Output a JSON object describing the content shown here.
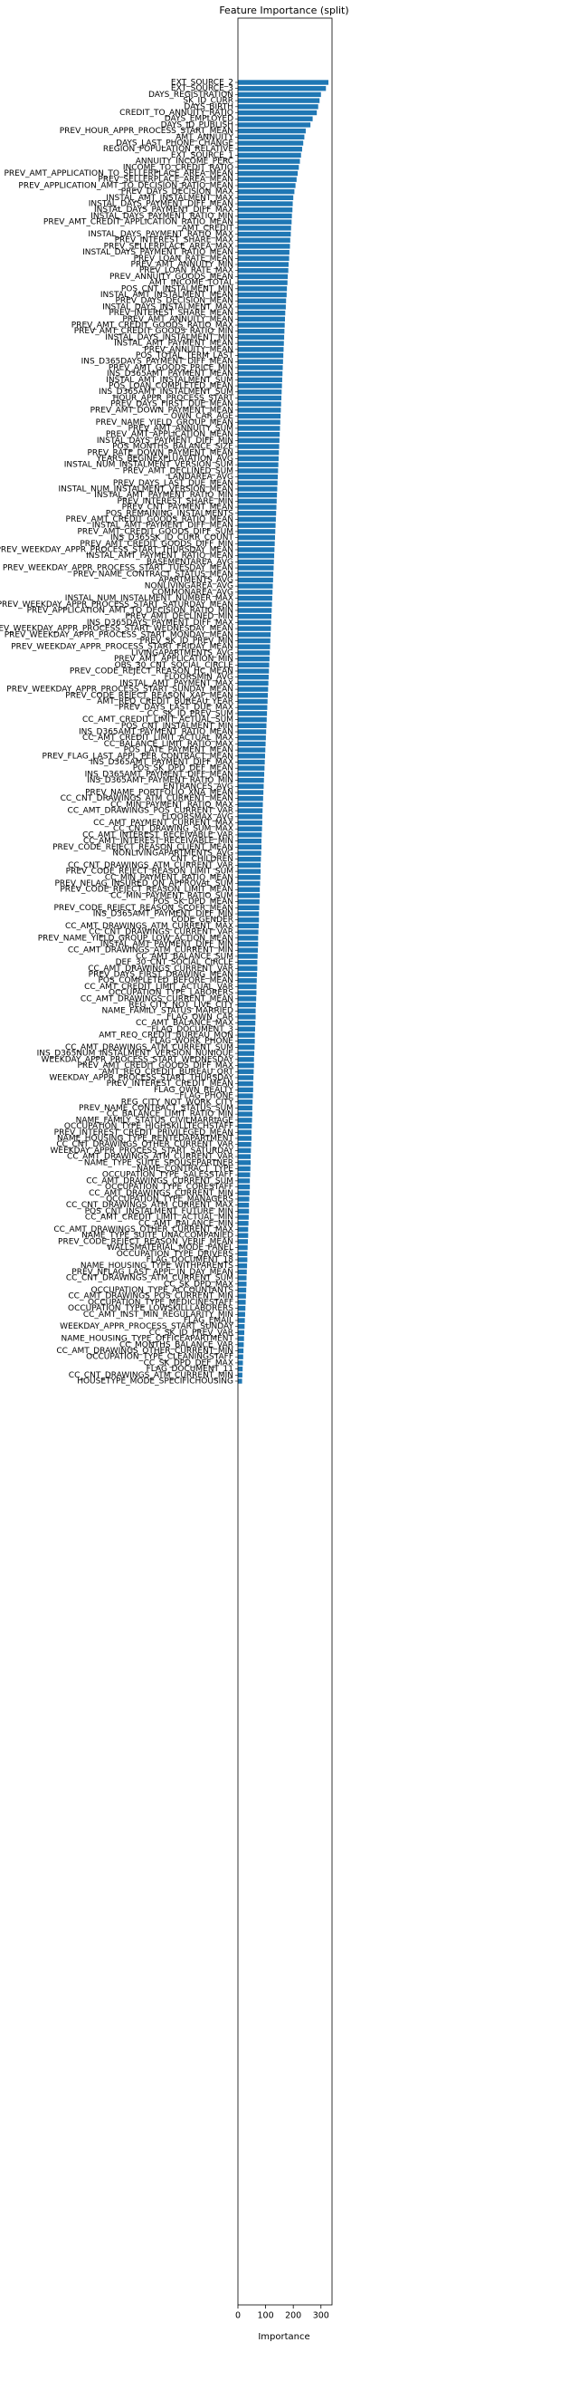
{
  "chart_data": {
    "type": "barh",
    "title": "Feature Importance (split)",
    "xlabel": "Importance",
    "color": "#1f77b4",
    "xlim": [
      0,
      340
    ],
    "xticks": [
      0,
      100,
      200,
      300
    ],
    "categories": [
      "EXT_SOURCE_2",
      "EXT_SOURCE_3",
      "DAYS_REGISTRATION",
      "SK_ID_CURR",
      "DAYS_BIRTH",
      "CREDIT_TO_ANNUITY_RATIO",
      "DAYS_EMPLOYED",
      "DAYS_ID_PUBLISH",
      "PREV_HOUR_APPR_PROCESS_START_MEAN",
      "AMT_ANNUITY",
      "DAYS_LAST_PHONE_CHANGE",
      "REGION_POPULATION_RELATIVE",
      "EXT_SOURCE_1",
      "ANNUITY_INCOME_PERC",
      "INCOME_TO_CREDIT_RATIO",
      "PREV_AMT_APPLICATION_TO_SELLERPLACE_AREA_MEAN",
      "PREV_SELLERPLACE_AREA_MEAN",
      "PREV_APPLICATION_AMT_TO_DECISION_RATIO_MEAN",
      "PREV_DAYS_DECISION_MAX",
      "INSTAL_AMT_INSTALMENT_MAX",
      "INSTAL_DAYS_PAYMENT_DIFF_MEAN",
      "INSTAL_DAYS_PAYMENT_DIFF_MAX",
      "INSTAL_DAYS_PAYMENT_RATIO_MIN",
      "PREV_AMT_CREDIT_APPLICATION_RATIO_MEAN",
      "AMT_CREDIT",
      "INSTAL_DAYS_PAYMENT_RATIO_MAX",
      "PREV_INTEREST_SHARE_MAX",
      "PREV_SELLERPLACE_AREA_MAX",
      "INSTAL_DAYS_PAYMENT_RATIO_MEAN",
      "PREV_LOAN_RATE_MEAN",
      "PREV_AMT_ANNUITY_MIN",
      "PREV_LOAN_RATE_MAX",
      "PREV_ANNUITY_GOODS_MEAN",
      "AMT_INCOME_TOTAL",
      "POS_CNT_INSTALMENT_MIN",
      "INSTAL_AMT_INSTALMENT_MEAN",
      "PREV_DAYS_DECISION_MEAN",
      "INSTAL_DAYS_INSTALMENT_MAX",
      "PREV_INTEREST_SHARE_MEAN",
      "PREV_AMT_ANNUITY_MEAN",
      "PREV_AMT_CREDIT_GOODS_RATIO_MAX",
      "PREV_AMT_CREDIT_GOODS_RATIO_MIN",
      "INSTAL_DAYS_INSTALMENT_MIN",
      "INSTAL_AMT_PAYMENT_MEAN",
      "PREV_ANNUITY_MEAN",
      "POS_TOTAL_TERM_LAST",
      "INS_D365DAYS_PAYMENT_DIFF_MEAN",
      "PREV_AMT_GOODS_PRICE_MIN",
      "INS_D365AMT_PAYMENT_MEAN",
      "INSTAL_AMT_INSTALMENT_SUM",
      "POS_LOAN_COMPLETED_MEAN",
      "INS_D365AMT_INSTALMENT_SUM",
      "HOUR_APPR_PROCESS_START",
      "PREV_DAYS_FIRST_DUE_MEAN",
      "PREV_AMT_DOWN_PAYMENT_MEAN",
      "OWN_CAR_AGE",
      "PREV_NAME_YIELD_GROUP_MEAN",
      "PREV_AMT_ANNUITY_SUM",
      "PREV_AMT_APPLICATION_MEAN",
      "INSTAL_DAYS_PAYMENT_DIFF_MIN",
      "POS_MONTHS_BALANCE_SIZE",
      "PREV_RATE_DOWN_PAYMENT_MEAN",
      "YEARS_BEGINEXPLUATATION_AVG",
      "INSTAL_NUM_INSTALMENT_VERSION_SUM",
      "PREV_AMT_DECLINED_SUM",
      "LANDAREA_AVG",
      "PREV_DAYS_LAST_DUE_MEAN",
      "INSTAL_NUM_INSTALMENT_VERSION_MEAN",
      "INSTAL_AMT_PAYMENT_RATIO_MIN",
      "PREV_INTEREST_SHARE_MIN",
      "PREV_CNT_PAYMENT_MEAN",
      "POS_REMAINING_INSTALMENTS",
      "PREV_AMT_CREDIT_GOODS_RATIO_MEAN",
      "INSTAL_AMT_PAYMENT_DIFF_MEAN",
      "PREV_AMT_CREDIT_GOODS_DIFF_SUM",
      "INS_D365SK_ID_CURR_COUNT",
      "PREV_AMT_CREDIT_GOODS_DIFF_MIN",
      "PREV_WEEKDAY_APPR_PROCESS_START_THURSDAY_MEAN",
      "INSTAL_AMT_PAYMENT_RATIO_MEAN",
      "BASEMENTAREA_AVG",
      "PREV_WEEKDAY_APPR_PROCESS_START_TUESDAY_MEAN",
      "PREV_NAME_CONTRACT_STATUS_MEAN",
      "APARTMENTS_AVG",
      "NONLIVINGAREA_AVG",
      "COMMONAREA_AVG",
      "INSTAL_NUM_INSTALMENT_NUMBER_MAX",
      "PREV_WEEKDAY_APPR_PROCESS_START_SATURDAY_MEAN",
      "PREV_APPLICATION_AMT_TO_DECISION_RATIO_MIN",
      "PREV_AMT_DECLINED_MIN",
      "INS_D365DAYS_PAYMENT_DIFF_MAX",
      "PREV_WEEKDAY_APPR_PROCESS_START_WEDNESDAY_MEAN",
      "PREV_WEEKDAY_APPR_PROCESS_START_MONDAY_MEAN",
      "PREV_SK_ID_PREV_MIN",
      "PREV_WEEKDAY_APPR_PROCESS_START_FRIDAY_MEAN",
      "LIVINGAPARTMENTS_AVG",
      "PREV_AMT_APPLICATION_MIN",
      "OBS_30_CNT_SOCIAL_CIRCLE",
      "PREV_CODE_REJECT_REASON_HC_MEAN",
      "FLOORSMIN_AVG",
      "INSTAL_AMT_PAYMENT_MAX",
      "PREV_WEEKDAY_APPR_PROCESS_START_SUNDAY_MEAN",
      "PREV_CODE_REJECT_REASON_XAP_MEAN",
      "AMT_REQ_CREDIT_BUREAU_YEAR",
      "PREV_DAYS_LAST_DUE_MAX",
      "CC_SK_ID_PREV_SUM",
      "CC_AMT_CREDIT_LIMIT_ACTUAL_SUM",
      "POS_CNT_INSTALMENT_MIN",
      "INS_D365AMT_PAYMENT_RATIO_MEAN",
      "CC_AMT_CREDIT_LIMIT_ACTUAL_MAX",
      "CC_BALANCE_LIMIT_RATIO_MAX",
      "POS_LATE_PAYMENT_MEAN",
      "PREV_FLAG_LAST_APPL_PER_CONTRACT_MEAN",
      "INS_D365AMT_PAYMENT_DIFF_MAX",
      "POS_SK_DPD_DEF_MEAN",
      "INS_D365AMT_PAYMENT_DIFF_MEAN",
      "INS_D365AMT_PAYMENT_RATIO_MIN",
      "ENTRANCES_AVG",
      "PREV_NAME_PORTFOLIO_XNA_MEAN",
      "CC_CNT_DRAWINGS_ATM_CURRENT_MEAN",
      "CC_MIN_PAYMENT_RATIO_MAX",
      "CC_AMT_DRAWINGS_POS_CURRENT_VAR",
      "FLOORSMAX_AVG",
      "CC_AMT_PAYMENT_CURRENT_MAX",
      "CC_CNT_DRAWING_SUM_MAX",
      "CC_AMT_INTEREST_RECEIVABLE_VAR",
      "CC_AMT_INTEREST_RECEIVABLE_MIN",
      "PREV_CODE_REJECT_REASON_CLIENT_MEAN",
      "NONLIVINGAPARTMENTS_AVG",
      "CNT_CHILDREN",
      "CC_CNT_DRAWINGS_ATM_CURRENT_VAR",
      "PREV_CODE_REJECT_REASON_LIMIT_SUM",
      "CC_MIN_PAYMENT_RATIO_MEAN",
      "PREV_NFLAG_INSURED_ON_APPROVAL_SUM",
      "PREV_CODE_REJECT_REASON_LIMIT_MEAN",
      "CC_MIN_PAYMENT_RATIO_SUM",
      "POS_SK_DPD_MEAN",
      "PREV_CODE_REJECT_REASON_SCOFR_MEAN",
      "INS_D365AMT_PAYMENT_DIFF_MIN",
      "CODE_GENDER",
      "CC_AMT_DRAWINGS_ATM_CURRENT_MAX",
      "CC_CNT_DRAWINGS_CURRENT_VAR",
      "PREV_NAME_YIELD_GROUP_LOW_ACTION_MEAN",
      "INSTAL_AMT_PAYMENT_DIFF_MIN",
      "CC_AMT_DRAWINGS_ATM_CURRENT_MIN",
      "CC_AMT_BALANCE_SUM",
      "DEF_30_CNT_SOCIAL_CIRCLE",
      "CC_AMT_DRAWINGS_CURRENT_VAR",
      "PREV_DAYS_FIRST_DRAWING_MEAN",
      "POS_COMPLETED_BEFORE_MEAN",
      "CC_AMT_CREDIT_LIMIT_ACTUAL_VAR",
      "OCCUPATION_TYPE_LABORERS",
      "CC_AMT_DRAWINGS_CURRENT_MEAN",
      "REG_CITY_NOT_LIVE_CITY",
      "NAME_FAMILY_STATUS_MARRIED",
      "FLAG_OWN_CAR",
      "CC_AMT_BALANCE_MAX",
      "FLAG_DOCUMENT_3",
      "AMT_REQ_CREDIT_BUREAU_MON",
      "FLAG_WORK_PHONE",
      "CC_AMT_DRAWINGS_ATM_CURRENT_SUM",
      "INS_D365NUM_INSTALMENT_VERSION_NUNIQUE",
      "WEEKDAY_APPR_PROCESS_START_WEDNESDAY",
      "PREV_AMT_CREDIT_GOODS_DIFF_MAX",
      "AMT_REQ_CREDIT_BUREAU_QRT",
      "WEEKDAY_APPR_PROCESS_START_THURSDAY",
      "PREV_INTEREST_CREDIT_MEAN",
      "FLAG_OWN_REALTY",
      "FLAG_PHONE",
      "REG_CITY_NOT_WORK_CITY",
      "PREV_NAME_CONTRACT_STATUS_SUM",
      "CC_BALANCE_LIMIT_RATIO_MIN",
      "NAME_FAMILY_STATUS_CIVILMARRIAGE",
      "OCCUPATION_TYPE_HIGHSKILLTECHSTAFF",
      "PREV_INTEREST_CREDIT_PRIVILEGED_MEAN",
      "NAME_HOUSING_TYPE_RENTEDAPARTMENT",
      "CC_CNT_DRAWINGS_OTHER_CURRENT_VAR",
      "WEEKDAY_APPR_PROCESS_START_SATURDAY",
      "CC_AMT_DRAWINGS_ATM_CURRENT_VAR",
      "NAME_TYPE_SUITE_SPOUSEPARTNER",
      "NAME_CONTRACT_TYPE",
      "OCCUPATION_TYPE_SALESSTAFF",
      "CC_AMT_DRAWINGS_CURRENT_SUM",
      "OCCUPATION_TYPE_CORESTAFF",
      "CC_AMT_DRAWINGS_CURRENT_MIN",
      "OCCUPATION_TYPE_MANAGERS",
      "CC_CNT_DRAWINGS_ATM_CURRENT_MAX",
      "POS_CNT_INSTALMENT_FUTURE_MIN",
      "CC_AMT_CREDIT_LIMIT_ACTUAL_MIN",
      "CC_AMT_BALANCE_MIN",
      "CC_AMT_DRAWINGS_OTHER_CURRENT_MAX",
      "NAME_TYPE_SUITE_UNACCOMPANIED",
      "PREV_CODE_REJECT_REASON_VERIF_MEAN",
      "WALLSMATERIAL_MODE_PANEL",
      "OCCUPATION_TYPE_DRIVERS",
      "FLAG_DOCUMENT_18",
      "NAME_HOUSING_TYPE_WITHPARENTS",
      "PREV_NFLAG_LAST_APPL_IN_DAY_MEAN",
      "CC_CNT_DRAWINGS_ATM_CURRENT_SUM",
      "CC_SK_DPD_MAX",
      "OCCUPATION_TYPE_ACCOUNTANTS",
      "CC_AMT_DRAWINGS_POS_CURRENT_MIN",
      "OCCUPATION_TYPE_MEDICINESTAFF",
      "OCCUPATION_TYPE_LOWSKILLLABORERS",
      "CC_AMT_INST_MIN_REGULARITY_MIN",
      "FLAG_EMAIL",
      "WEEKDAY_APPR_PROCESS_START_SUNDAY",
      "CC_SK_ID_PREV_VAR",
      "NAME_HOUSING_TYPE_OFFICEAPARTMENT",
      "CC_MONTHS_BALANCE_VAR",
      "CC_AMT_DRAWINGS_OTHER_CURRENT_MIN",
      "OCCUPATION_TYPE_CLEANINGSTAFF",
      "CC_SK_DPD_DEF_MAX",
      "FLAG_DOCUMENT_11",
      "CC_CNT_DRAWINGS_ATM_CURRENT_MIN",
      "HOUSETYPE_MODE_SPECIFICHOUSING"
    ],
    "values": [
      327,
      318,
      300,
      295,
      290,
      285,
      270,
      262,
      245,
      240,
      236,
      232,
      228,
      224,
      220,
      216,
      212,
      208,
      204,
      200,
      198,
      197,
      195,
      194,
      192,
      191,
      189,
      188,
      186,
      185,
      183,
      182,
      180,
      179,
      177,
      176,
      174,
      173,
      171,
      170,
      169,
      168,
      167,
      166,
      165,
      164,
      163,
      162,
      161,
      160,
      159,
      158,
      157,
      156,
      155,
      154,
      153,
      152,
      151,
      150,
      149,
      148,
      147,
      146,
      145,
      144,
      143,
      142,
      141,
      140,
      139,
      138,
      137,
      136,
      135,
      134,
      133,
      132,
      131,
      130,
      129,
      128,
      127,
      126,
      125,
      124,
      123,
      122,
      121,
      120,
      119,
      118,
      117,
      116,
      115,
      114,
      113,
      112,
      111,
      110,
      109,
      108,
      107,
      106,
      105,
      104,
      103,
      102,
      101,
      100,
      99,
      98,
      97,
      96,
      95,
      94,
      93,
      92,
      91,
      90,
      89,
      88,
      88,
      87,
      86,
      85,
      85,
      84,
      83,
      82,
      82,
      81,
      80,
      79,
      79,
      78,
      77,
      76,
      76,
      75,
      74,
      73,
      73,
      72,
      71,
      70,
      70,
      69,
      68,
      67,
      67,
      66,
      65,
      64,
      64,
      63,
      62,
      61,
      61,
      60,
      59,
      58,
      58,
      57,
      56,
      55,
      55,
      54,
      53,
      52,
      52,
      51,
      50,
      49,
      49,
      48,
      47,
      46,
      46,
      45,
      44,
      43,
      43,
      42,
      41,
      40,
      40,
      39,
      38,
      37,
      37,
      36,
      35,
      34,
      34,
      33,
      32,
      31,
      31,
      30,
      29,
      28,
      27,
      26,
      25,
      24,
      23,
      22,
      21,
      20,
      19,
      18,
      17,
      16,
      15
    ]
  }
}
